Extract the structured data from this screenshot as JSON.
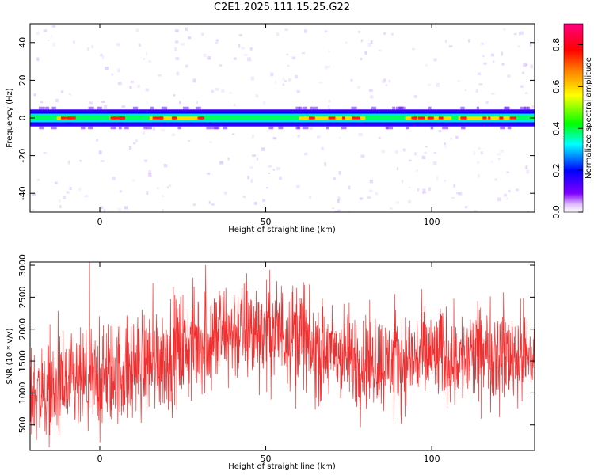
{
  "title": "C2E1.2025.111.15.25.G22",
  "chart_data": [
    {
      "type": "heatmap",
      "title": "C2E1.2025.111.15.25.G22",
      "xlabel": "Height of straight line (km)",
      "ylabel": "Frequency (Hz)",
      "xlim": [
        -21,
        131
      ],
      "ylim": [
        -50,
        50
      ],
      "x_ticks": [
        0,
        50,
        100
      ],
      "y_ticks": [
        -40,
        -20,
        0,
        20,
        40
      ],
      "colorbar": {
        "label": "Normalized spectral amplitude",
        "range": [
          0,
          0.9
        ],
        "ticks": [
          "0.0",
          "0.2",
          "0.4",
          "0.6",
          "0.8"
        ],
        "colors": [
          "#ffffff",
          "#8000ff",
          "#0000ff",
          "#00ffff",
          "#00ff00",
          "#ffff00",
          "#ff8000",
          "#ff0000",
          "#ff00ff"
        ]
      },
      "band": {
        "center_hz": 0,
        "peak_segments_km": [
          [
            -13,
            -8
          ],
          [
            3,
            6
          ],
          [
            15,
            30
          ],
          [
            60,
            80
          ],
          [
            92,
            106
          ],
          [
            108,
            125
          ]
        ],
        "mean_amplitude": 0.55,
        "peak_amplitude": 0.9
      },
      "grid": false
    },
    {
      "type": "line",
      "xlabel": "Height of straight line (km)",
      "ylabel": "SNR (10 * v/v)",
      "xlim": [
        -21,
        131
      ],
      "ylim": [
        100,
        3050
      ],
      "x_ticks": [
        0,
        50,
        100
      ],
      "y_ticks": [
        500,
        1000,
        1500,
        2000,
        2500,
        3000
      ],
      "color": "#f03030",
      "envelope": {
        "x": [
          -21,
          -10,
          0,
          10,
          20,
          30,
          40,
          50,
          55,
          62,
          63,
          70,
          80,
          90,
          100,
          110,
          120,
          131
        ],
        "mean": [
          1000,
          1050,
          1200,
          1400,
          1600,
          1800,
          1950,
          1980,
          1950,
          1950,
          1650,
          1600,
          1500,
          1500,
          1600,
          1550,
          1650,
          1550
        ],
        "spread": [
          350,
          400,
          400,
          420,
          420,
          420,
          400,
          400,
          400,
          400,
          380,
          380,
          380,
          360,
          380,
          360,
          380,
          380
        ]
      },
      "grid": false
    }
  ]
}
